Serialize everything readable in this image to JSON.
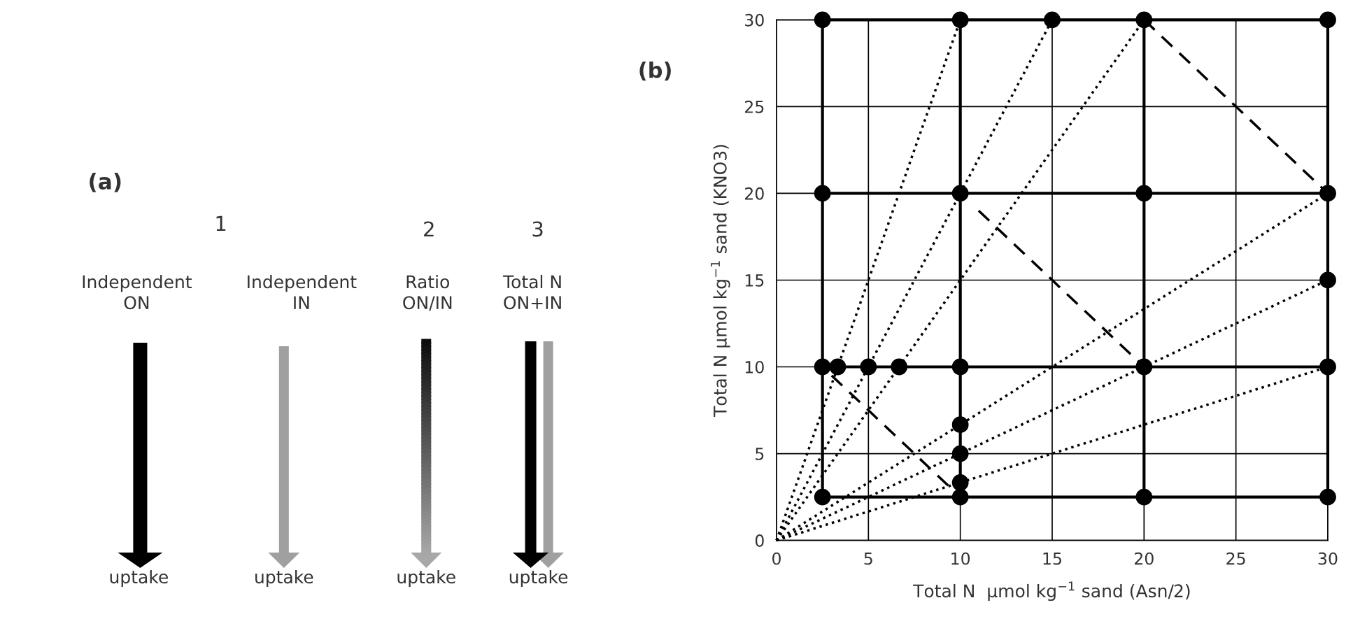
{
  "chart_data": [
    {
      "type": "other",
      "annotations": [
        "(a)",
        "1",
        "2",
        "3",
        "Independent\nON",
        "Independent\nIN",
        "Ratio\nON/IN",
        "Total N\nON+IN",
        "uptake",
        "uptake",
        "uptake",
        "uptake"
      ]
    },
    {
      "type": "scatter",
      "xlabel": "Total N  μmol kg$^{−1}$ sand (Asn/2)",
      "ylabel": "Total N μmol kg$^{−1}$ sand (KNO3)",
      "annotations": [
        "(b)"
      ],
      "xlim": [
        0,
        30
      ],
      "ylim": [
        0,
        30
      ],
      "xticks": [
        0,
        5,
        10,
        15,
        20,
        25,
        30
      ],
      "yticks": [
        0,
        5,
        10,
        15,
        20,
        25,
        30
      ],
      "grid": true,
      "series": [
        {
          "type": "line",
          "line_style": "solid",
          "color": "#000000",
          "x": [
            2.5,
            2.5
          ],
          "values": [
            2.5,
            30
          ]
        },
        {
          "type": "line",
          "line_style": "solid",
          "color": "#000000",
          "x": [
            10,
            10
          ],
          "values": [
            2.5,
            30
          ]
        },
        {
          "type": "line",
          "line_style": "solid",
          "color": "#000000",
          "x": [
            20,
            20
          ],
          "values": [
            2.5,
            30
          ]
        },
        {
          "type": "line",
          "line_style": "solid",
          "color": "#000000",
          "x": [
            30,
            30
          ],
          "values": [
            2.5,
            30
          ]
        },
        {
          "type": "line",
          "line_style": "solid",
          "color": "#000000",
          "x": [
            2.5,
            30
          ],
          "values": [
            30,
            30
          ]
        },
        {
          "type": "line",
          "line_style": "solid",
          "color": "#000000",
          "x": [
            2.5,
            30
          ],
          "values": [
            20,
            20
          ]
        },
        {
          "type": "line",
          "line_style": "solid",
          "color": "#000000",
          "x": [
            2.5,
            30
          ],
          "values": [
            10,
            10
          ]
        },
        {
          "type": "line",
          "line_style": "solid",
          "color": "#000000",
          "x": [
            2.5,
            30
          ],
          "values": [
            2.5,
            2.5
          ]
        },
        {
          "type": "line",
          "line_style": "dotted",
          "color": "#000000",
          "x": [
            0,
            10
          ],
          "values": [
            0,
            30
          ]
        },
        {
          "type": "line",
          "line_style": "dotted",
          "color": "#000000",
          "x": [
            0,
            15
          ],
          "values": [
            0,
            30
          ]
        },
        {
          "type": "line",
          "line_style": "dotted",
          "color": "#000000",
          "x": [
            0,
            20
          ],
          "values": [
            0,
            30
          ]
        },
        {
          "type": "line",
          "line_style": "dotted",
          "color": "#000000",
          "x": [
            0,
            30
          ],
          "values": [
            0,
            20
          ]
        },
        {
          "type": "line",
          "line_style": "dotted",
          "color": "#000000",
          "x": [
            0,
            30
          ],
          "values": [
            0,
            15
          ]
        },
        {
          "type": "line",
          "line_style": "dotted",
          "color": "#000000",
          "x": [
            0,
            30
          ],
          "values": [
            0,
            10
          ]
        },
        {
          "type": "line",
          "line_style": "dashed",
          "color": "#000000",
          "x": [
            20,
            30
          ],
          "values": [
            30,
            20
          ]
        },
        {
          "type": "line",
          "line_style": "dashed",
          "color": "#000000",
          "x": [
            11,
            20
          ],
          "values": [
            19,
            10
          ]
        },
        {
          "type": "line",
          "line_style": "dashed",
          "color": "#000000",
          "x": [
            3,
            10
          ],
          "values": [
            9.5,
            2.5
          ]
        },
        {
          "type": "scatter",
          "marker": "circle",
          "color": "#000000",
          "x": [
            2.5,
            10,
            15,
            20,
            30,
            2.5,
            10,
            20,
            30,
            30,
            2.5,
            3.33,
            5,
            6.67,
            10,
            20,
            30,
            10,
            10,
            10,
            2.5,
            10,
            20,
            30
          ],
          "values": [
            30,
            30,
            30,
            30,
            30,
            20,
            20,
            20,
            20,
            15,
            10,
            10,
            10,
            10,
            10,
            10,
            10,
            6.67,
            5,
            3.33,
            2.5,
            2.5,
            2.5,
            2.5
          ]
        }
      ]
    }
  ]
}
